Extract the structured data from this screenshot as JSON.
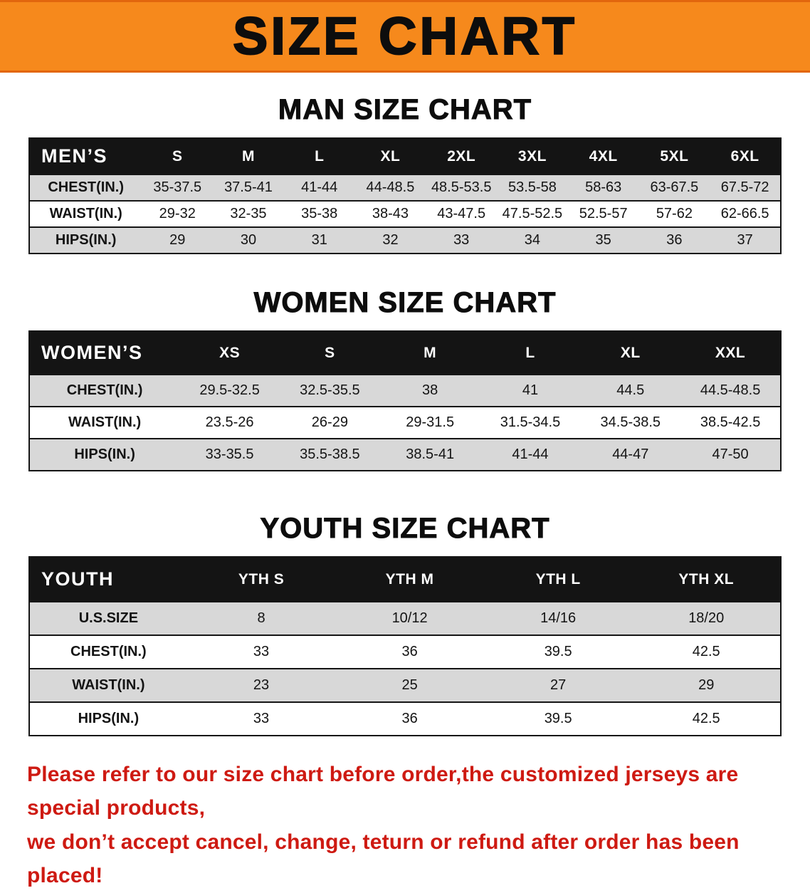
{
  "banner": {
    "title": "SIZE CHART"
  },
  "men": {
    "heading": "MAN SIZE CHART",
    "table": {
      "header": [
        "MEN’S",
        "S",
        "M",
        "L",
        "XL",
        "2XL",
        "3XL",
        "4XL",
        "5XL",
        "6XL"
      ],
      "rows": [
        [
          "CHEST(IN.)",
          "35-37.5",
          "37.5-41",
          "41-44",
          "44-48.5",
          "48.5-53.5",
          "53.5-58",
          "58-63",
          "63-67.5",
          "67.5-72"
        ],
        [
          "WAIST(IN.)",
          "29-32",
          "32-35",
          "35-38",
          "38-43",
          "43-47.5",
          "47.5-52.5",
          "52.5-57",
          "57-62",
          "62-66.5"
        ],
        [
          "HIPS(IN.)",
          "29",
          "30",
          "31",
          "32",
          "33",
          "34",
          "35",
          "36",
          "37"
        ]
      ]
    }
  },
  "women": {
    "heading": "WOMEN SIZE CHART",
    "table": {
      "header": [
        "WOMEN’S",
        "XS",
        "S",
        "M",
        "L",
        "XL",
        "XXL"
      ],
      "rows": [
        [
          "CHEST(IN.)",
          "29.5-32.5",
          "32.5-35.5",
          "38",
          "41",
          "44.5",
          "44.5-48.5"
        ],
        [
          "WAIST(IN.)",
          "23.5-26",
          "26-29",
          "29-31.5",
          "31.5-34.5",
          "34.5-38.5",
          "38.5-42.5"
        ],
        [
          "HIPS(IN.)",
          "33-35.5",
          "35.5-38.5",
          "38.5-41",
          "41-44",
          "44-47",
          "47-50"
        ]
      ]
    }
  },
  "youth": {
    "heading": "YOUTH SIZE CHART",
    "table": {
      "header": [
        "YOUTH",
        "YTH S",
        "YTH M",
        "YTH L",
        "YTH XL"
      ],
      "rows": [
        [
          "U.S.SIZE",
          "8",
          "10/12",
          "14/16",
          "18/20"
        ],
        [
          "CHEST(IN.)",
          "33",
          "36",
          "39.5",
          "42.5"
        ],
        [
          "WAIST(IN.)",
          "23",
          "25",
          "27",
          "29"
        ],
        [
          "HIPS(IN.)",
          "33",
          "36",
          "39.5",
          "42.5"
        ]
      ]
    }
  },
  "disclaimer": {
    "line1": "Please refer to our size chart before order,the customized jerseys are special products,",
    "line2": "we don’t accept cancel, change, teturn or refund after order has been placed!"
  },
  "colors": {
    "banner_bg": "#f6891c",
    "header_bg": "#141414",
    "stripe": "#d8d8d8",
    "disclaimer": "#ce1a12"
  }
}
